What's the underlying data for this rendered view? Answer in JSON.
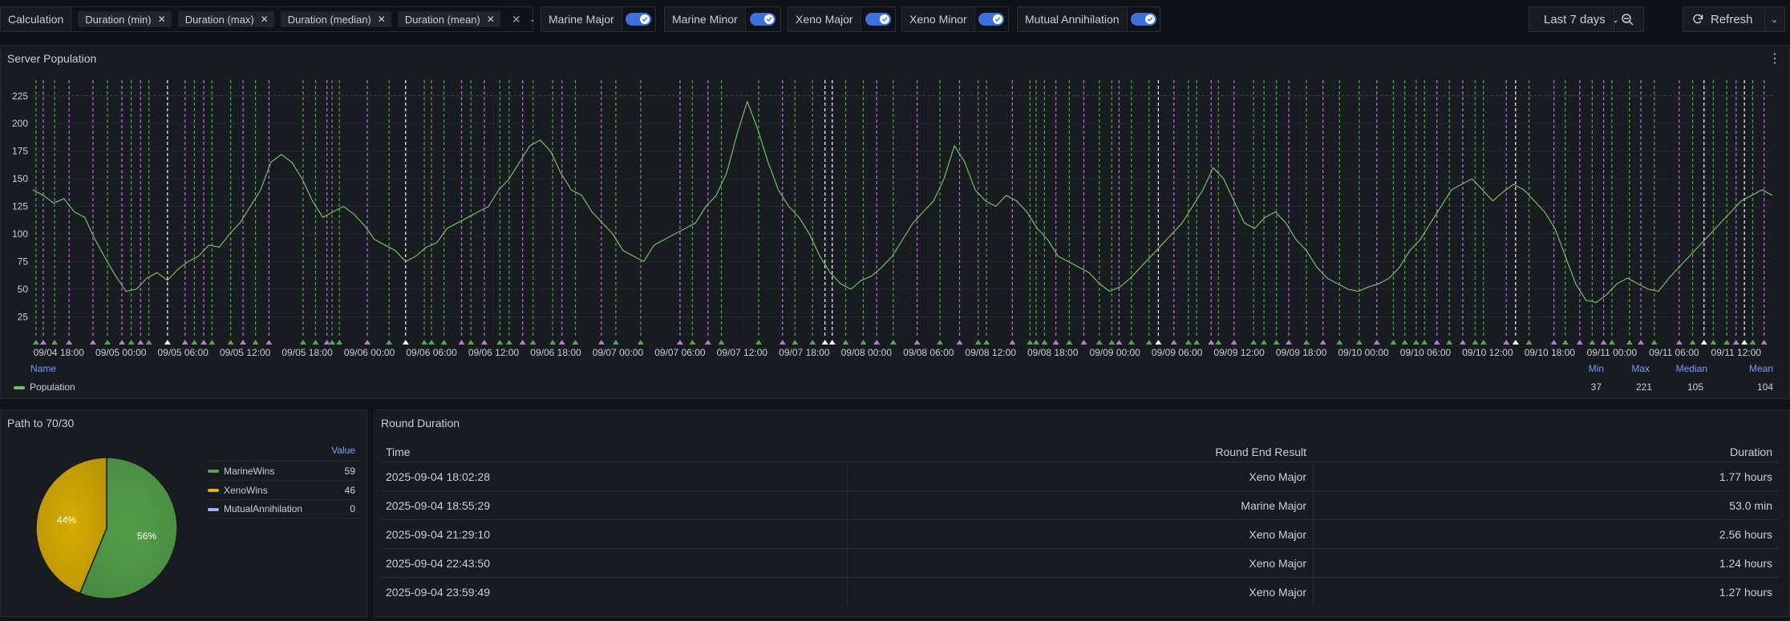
{
  "toolbar": {
    "calculation": {
      "label": "Calculation",
      "chips": [
        "Duration (min)",
        "Duration (max)",
        "Duration (median)",
        "Duration (mean)"
      ]
    },
    "toggles": [
      {
        "label": "Marine Major",
        "on": true
      },
      {
        "label": "Marine Minor",
        "on": true
      },
      {
        "label": "Xeno Major",
        "on": true
      },
      {
        "label": "Xeno Minor",
        "on": true
      },
      {
        "label": "Mutual Annihilation",
        "on": true
      }
    ],
    "time_range": "Last 7 days",
    "refresh_label": "Refresh"
  },
  "population_panel": {
    "title": "Server Population",
    "legend": {
      "headers": {
        "name": "Name",
        "min": "Min",
        "max": "Max",
        "median": "Median",
        "mean": "Mean"
      },
      "series": {
        "name": "Population",
        "min": "37",
        "max": "221",
        "median": "105",
        "mean": "104",
        "color": "#73bf69"
      }
    }
  },
  "chart_data": {
    "type": "line",
    "series": [
      {
        "name": "Population"
      }
    ],
    "y_ticks": [
      25,
      50,
      75,
      100,
      125,
      150,
      175,
      200,
      225
    ],
    "ylim": [
      10,
      235
    ],
    "x_ticks": [
      "09/04 18:00",
      "09/05 00:00",
      "09/05 06:00",
      "09/05 12:00",
      "09/05 18:00",
      "09/06 00:00",
      "09/06 06:00",
      "09/06 12:00",
      "09/06 18:00",
      "09/07 00:00",
      "09/07 06:00",
      "09/07 12:00",
      "09/07 18:00",
      "09/08 00:00",
      "09/08 06:00",
      "09/08 12:00",
      "09/08 18:00",
      "09/09 00:00",
      "09/09 06:00",
      "09/09 12:00",
      "09/09 18:00",
      "09/10 00:00",
      "09/10 06:00",
      "09/10 12:00",
      "09/10 18:00",
      "09/11 00:00",
      "09/11 06:00",
      "09/11 12:00"
    ],
    "x_hours_from": "09/04 15:30",
    "hours": [
      0,
      1,
      2,
      3,
      4,
      5,
      6,
      7,
      8,
      9,
      10,
      11,
      12,
      13,
      14,
      15,
      16,
      17,
      18,
      19,
      20,
      21,
      22,
      23,
      24,
      25,
      26,
      27,
      28,
      29,
      30,
      31,
      32,
      33,
      34,
      35,
      36,
      37,
      38,
      39,
      40,
      41,
      42,
      43,
      44,
      45,
      46,
      47,
      48,
      49,
      50,
      51,
      52,
      53,
      54,
      55,
      56,
      57,
      58,
      59,
      60,
      61,
      62,
      63,
      64,
      65,
      66,
      67,
      68,
      69,
      70,
      71,
      72,
      73,
      74,
      75,
      76,
      77,
      78,
      79,
      80,
      81,
      82,
      83,
      84,
      85,
      86,
      87,
      88,
      89,
      90,
      91,
      92,
      93,
      94,
      95,
      96,
      97,
      98,
      99,
      100,
      101,
      102,
      103,
      104,
      105,
      106,
      107,
      108,
      109,
      110,
      111,
      112,
      113,
      114,
      115,
      116,
      117,
      118,
      119,
      120,
      121,
      122,
      123,
      124,
      125,
      126,
      127,
      128,
      129,
      130,
      131,
      132,
      133,
      134,
      135,
      136,
      137,
      138,
      139,
      140,
      141,
      142,
      143,
      144,
      145,
      146,
      147,
      148,
      149,
      150,
      151,
      152,
      153,
      154,
      155,
      156,
      157,
      158,
      159,
      160,
      161,
      162,
      163,
      164,
      165,
      166,
      167,
      168
    ],
    "values": [
      140,
      135,
      128,
      132,
      120,
      115,
      95,
      78,
      62,
      48,
      50,
      60,
      65,
      58,
      68,
      75,
      80,
      90,
      88,
      100,
      110,
      125,
      140,
      165,
      172,
      165,
      150,
      130,
      115,
      120,
      125,
      118,
      108,
      95,
      90,
      85,
      75,
      80,
      88,
      92,
      105,
      110,
      115,
      120,
      125,
      140,
      150,
      165,
      180,
      185,
      175,
      155,
      140,
      135,
      120,
      110,
      100,
      85,
      80,
      75,
      90,
      95,
      100,
      105,
      110,
      125,
      135,
      155,
      190,
      220,
      195,
      165,
      140,
      125,
      115,
      100,
      80,
      65,
      55,
      50,
      58,
      62,
      70,
      80,
      95,
      110,
      120,
      130,
      150,
      180,
      165,
      140,
      130,
      125,
      135,
      130,
      120,
      105,
      95,
      80,
      75,
      70,
      65,
      55,
      48,
      52,
      60,
      70,
      80,
      90,
      100,
      110,
      125,
      140,
      160,
      150,
      130,
      110,
      105,
      115,
      120,
      110,
      95,
      85,
      70,
      60,
      55,
      50,
      48,
      52,
      55,
      60,
      70,
      85,
      95,
      110,
      125,
      140,
      145,
      150,
      140,
      130,
      138,
      145,
      140,
      130,
      120,
      105,
      80,
      55,
      40,
      38,
      45,
      55,
      60,
      55,
      50,
      48,
      60,
      70,
      80,
      90,
      100,
      110,
      120,
      130,
      135,
      140,
      135
    ],
    "markers": [
      {
        "h": 0.3,
        "type": "mm"
      },
      {
        "h": 1.0,
        "type": "xm"
      },
      {
        "h": 2.1,
        "type": "mm"
      },
      {
        "h": 3.5,
        "type": "xm"
      },
      {
        "h": 5.8,
        "type": "xn"
      },
      {
        "h": 7.2,
        "type": "mm"
      },
      {
        "h": 8.6,
        "type": "xm"
      },
      {
        "h": 9.5,
        "type": "mn"
      },
      {
        "h": 10.4,
        "type": "xm"
      },
      {
        "h": 11.2,
        "type": "mm"
      },
      {
        "h": 13.0,
        "type": "ma"
      },
      {
        "h": 14.7,
        "type": "xm"
      },
      {
        "h": 15.6,
        "type": "mm"
      },
      {
        "h": 16.5,
        "type": "xm"
      },
      {
        "h": 17.3,
        "type": "mm"
      },
      {
        "h": 19.1,
        "type": "mm"
      },
      {
        "h": 20.3,
        "type": "xm"
      },
      {
        "h": 21.5,
        "type": "mm"
      },
      {
        "h": 22.8,
        "type": "xm"
      },
      {
        "h": 26.1,
        "type": "mn"
      },
      {
        "h": 27.3,
        "type": "mm"
      },
      {
        "h": 28.4,
        "type": "xm"
      },
      {
        "h": 28.9,
        "type": "mm"
      },
      {
        "h": 29.6,
        "type": "mm"
      },
      {
        "h": 32.3,
        "type": "xm"
      },
      {
        "h": 34.4,
        "type": "mm"
      },
      {
        "h": 36.0,
        "type": "ma"
      },
      {
        "h": 37.8,
        "type": "mm"
      },
      {
        "h": 38.5,
        "type": "mm"
      },
      {
        "h": 39.7,
        "type": "mm"
      },
      {
        "h": 41.4,
        "type": "xm"
      },
      {
        "h": 42.3,
        "type": "mm"
      },
      {
        "h": 43.6,
        "type": "xm"
      },
      {
        "h": 45.1,
        "type": "mm"
      },
      {
        "h": 46.0,
        "type": "mm"
      },
      {
        "h": 47.3,
        "type": "xm"
      },
      {
        "h": 48.3,
        "type": "mm"
      },
      {
        "h": 50.2,
        "type": "mn"
      },
      {
        "h": 51.1,
        "type": "xm"
      },
      {
        "h": 52.4,
        "type": "mm"
      },
      {
        "h": 54.9,
        "type": "xm"
      },
      {
        "h": 56.3,
        "type": "mm"
      },
      {
        "h": 58.7,
        "type": "mm"
      },
      {
        "h": 62.5,
        "type": "xm"
      },
      {
        "h": 63.7,
        "type": "mm"
      },
      {
        "h": 65.2,
        "type": "xm"
      },
      {
        "h": 66.5,
        "type": "mm"
      },
      {
        "h": 70.1,
        "type": "mm"
      },
      {
        "h": 72.4,
        "type": "xm"
      },
      {
        "h": 73.6,
        "type": "mm"
      },
      {
        "h": 75.3,
        "type": "mn"
      },
      {
        "h": 76.5,
        "type": "ma"
      },
      {
        "h": 77.2,
        "type": "ma"
      },
      {
        "h": 78.5,
        "type": "mn"
      },
      {
        "h": 80.2,
        "type": "mm"
      },
      {
        "h": 81.5,
        "type": "xm"
      },
      {
        "h": 83.1,
        "type": "mm"
      },
      {
        "h": 85.4,
        "type": "xm"
      },
      {
        "h": 87.6,
        "type": "mm"
      },
      {
        "h": 89.5,
        "type": "xm"
      },
      {
        "h": 91.3,
        "type": "mm"
      },
      {
        "h": 92.1,
        "type": "mm"
      },
      {
        "h": 94.6,
        "type": "xm"
      },
      {
        "h": 96.3,
        "type": "mm"
      },
      {
        "h": 96.9,
        "type": "mm"
      },
      {
        "h": 97.7,
        "type": "mn"
      },
      {
        "h": 98.8,
        "type": "xm"
      },
      {
        "h": 100.1,
        "type": "mm"
      },
      {
        "h": 101.5,
        "type": "xm"
      },
      {
        "h": 103.0,
        "type": "mm"
      },
      {
        "h": 104.2,
        "type": "mm"
      },
      {
        "h": 104.9,
        "type": "xm"
      },
      {
        "h": 106.1,
        "type": "mm"
      },
      {
        "h": 107.8,
        "type": "mn"
      },
      {
        "h": 108.7,
        "type": "ma"
      },
      {
        "h": 110.2,
        "type": "xm"
      },
      {
        "h": 111.6,
        "type": "mm"
      },
      {
        "h": 112.4,
        "type": "mm"
      },
      {
        "h": 113.8,
        "type": "xn"
      },
      {
        "h": 114.5,
        "type": "mm"
      },
      {
        "h": 116.0,
        "type": "xm"
      },
      {
        "h": 117.9,
        "type": "mm"
      },
      {
        "h": 118.9,
        "type": "mn"
      },
      {
        "h": 120.1,
        "type": "mm"
      },
      {
        "h": 121.3,
        "type": "xm"
      },
      {
        "h": 123.0,
        "type": "mm"
      },
      {
        "h": 124.6,
        "type": "xm"
      },
      {
        "h": 126.2,
        "type": "mm"
      },
      {
        "h": 128.1,
        "type": "mm"
      },
      {
        "h": 129.8,
        "type": "xm"
      },
      {
        "h": 131.4,
        "type": "mm"
      },
      {
        "h": 132.5,
        "type": "mm"
      },
      {
        "h": 133.6,
        "type": "mm"
      },
      {
        "h": 134.4,
        "type": "mm"
      },
      {
        "h": 135.6,
        "type": "xm"
      },
      {
        "h": 136.8,
        "type": "mm"
      },
      {
        "h": 138.1,
        "type": "xm"
      },
      {
        "h": 139.3,
        "type": "mm"
      },
      {
        "h": 140.1,
        "type": "mm"
      },
      {
        "h": 142.3,
        "type": "xm"
      },
      {
        "h": 143.2,
        "type": "ma"
      },
      {
        "h": 144.5,
        "type": "mm"
      },
      {
        "h": 146.9,
        "type": "xm"
      },
      {
        "h": 148.0,
        "type": "mm"
      },
      {
        "h": 149.4,
        "type": "xm"
      },
      {
        "h": 150.6,
        "type": "mm"
      },
      {
        "h": 151.7,
        "type": "xm"
      },
      {
        "h": 152.5,
        "type": "mm"
      },
      {
        "h": 154.2,
        "type": "mm"
      },
      {
        "h": 155.3,
        "type": "xm"
      },
      {
        "h": 156.6,
        "type": "mm"
      },
      {
        "h": 159.0,
        "type": "xm"
      },
      {
        "h": 160.3,
        "type": "mn"
      },
      {
        "h": 161.4,
        "type": "ma"
      },
      {
        "h": 162.3,
        "type": "mm"
      },
      {
        "h": 163.6,
        "type": "mm"
      },
      {
        "h": 164.5,
        "type": "xm"
      },
      {
        "h": 165.3,
        "type": "ma"
      },
      {
        "h": 166.1,
        "type": "mm"
      },
      {
        "h": 167.2,
        "type": "xm"
      }
    ],
    "marker_colors": {
      "mm": "#56a64b",
      "mn": "#56a64b",
      "xm": "#b877d9",
      "xn": "#b877d9",
      "ma": "#ffffff"
    }
  },
  "pie_panel": {
    "title": "Path to 70/30",
    "value_header": "Value",
    "slices": [
      {
        "name": "MarineWins",
        "value": 59,
        "value_label": "59",
        "label": "56%",
        "color": "#56a64b"
      },
      {
        "name": "XenoWins",
        "value": 46,
        "value_label": "46",
        "label": "44%",
        "color": "#e0b400"
      },
      {
        "name": "MutualAnnihilation",
        "value": 0,
        "value_label": "0",
        "label": "",
        "color": "#8ab8ff"
      }
    ]
  },
  "table_panel": {
    "title": "Round Duration",
    "headers": {
      "time": "Time",
      "result": "Round End Result",
      "duration": "Duration"
    },
    "rows": [
      {
        "time": "2025-09-04 18:02:28",
        "result": "Xeno Major",
        "duration": "1.77 hours"
      },
      {
        "time": "2025-09-04 18:55:29",
        "result": "Marine Major",
        "duration": "53.0 min"
      },
      {
        "time": "2025-09-04 21:29:10",
        "result": "Xeno Major",
        "duration": "2.56 hours"
      },
      {
        "time": "2025-09-04 22:43:50",
        "result": "Xeno Major",
        "duration": "1.24 hours"
      },
      {
        "time": "2025-09-04 23:59:49",
        "result": "Xeno Major",
        "duration": "1.27 hours"
      }
    ]
  }
}
